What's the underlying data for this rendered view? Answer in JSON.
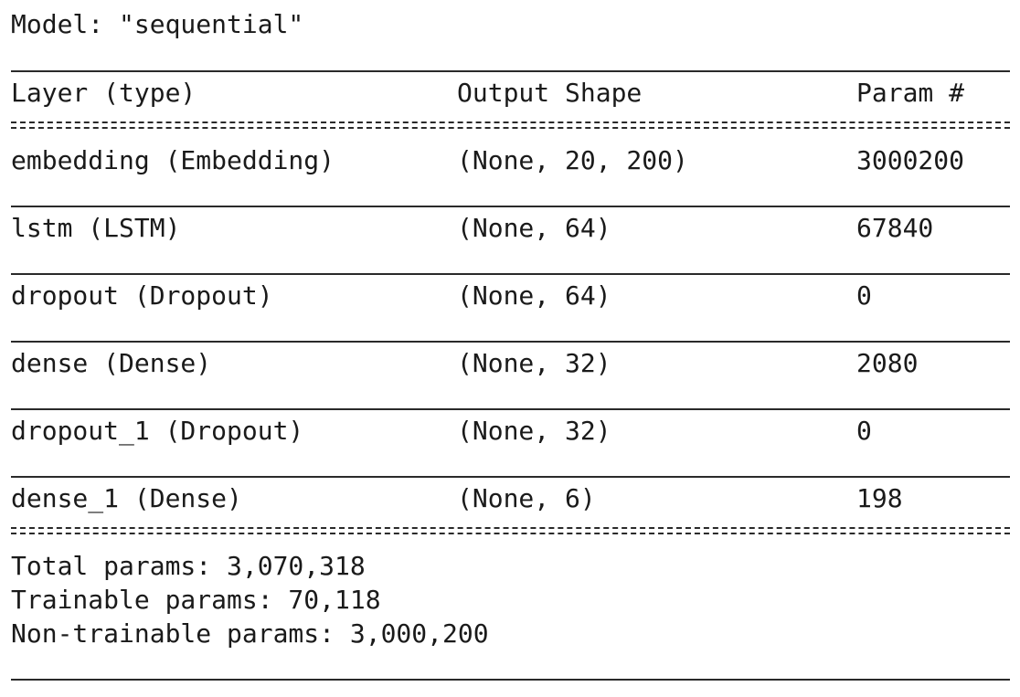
{
  "model_title": "Model: \"sequential\"",
  "header": {
    "layer": "Layer (type)",
    "output_shape": "Output Shape",
    "params": "Param #"
  },
  "rows": [
    {
      "layer": "embedding (Embedding)",
      "output_shape": "(None, 20, 200)",
      "params": "3000200"
    },
    {
      "layer": "lstm (LSTM)",
      "output_shape": "(None, 64)",
      "params": "67840"
    },
    {
      "layer": "dropout (Dropout)",
      "output_shape": "(None, 64)",
      "params": "0"
    },
    {
      "layer": "dense (Dense)",
      "output_shape": "(None, 32)",
      "params": "2080"
    },
    {
      "layer": "dropout_1 (Dropout)",
      "output_shape": "(None, 32)",
      "params": "0"
    },
    {
      "layer": "dense_1 (Dense)",
      "output_shape": "(None, 6)",
      "params": "198"
    }
  ],
  "totals": {
    "total": "Total params: 3,070,318",
    "trainable": "Trainable params: 70,118",
    "non_trainable": "Non-trainable params: 3,000,200"
  }
}
